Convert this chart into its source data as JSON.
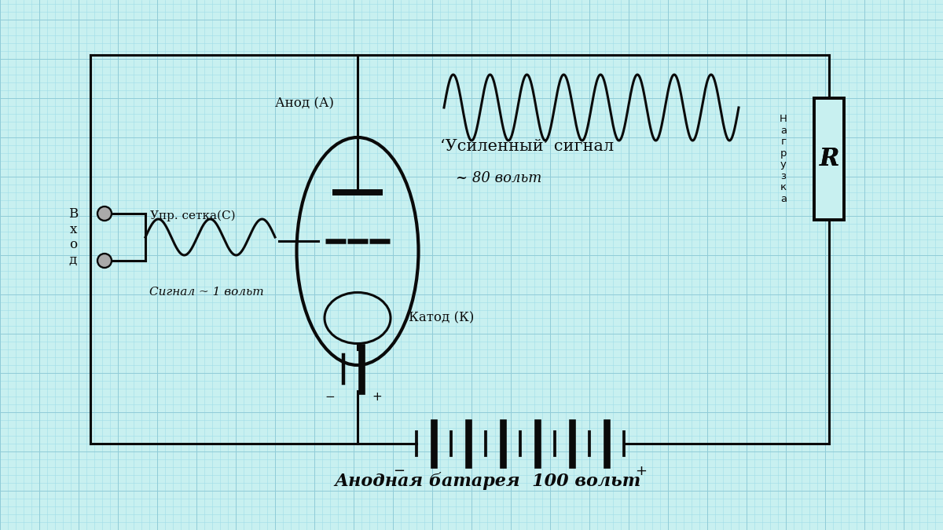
{
  "bg_color": "#c8f0f0",
  "grid_minor_color": "#a0dde8",
  "grid_major_color": "#90ccd8",
  "line_color": "#0a0a0a",
  "lw": 2.2,
  "labels": {
    "anode": "Анод (А)",
    "grid_label": "Упр. сетка(С)",
    "cathode": "Катод (К)",
    "signal_in": "Сигнал ~ 1 вольт",
    "signal_out": "‘Усиленный’ сигнал",
    "voltage_out": "~ 80 вольт",
    "nagr": "Нагрузка",
    "battery": "Анодная батарея  100 вольт",
    "vhod": "В\nх\nо\nд"
  }
}
